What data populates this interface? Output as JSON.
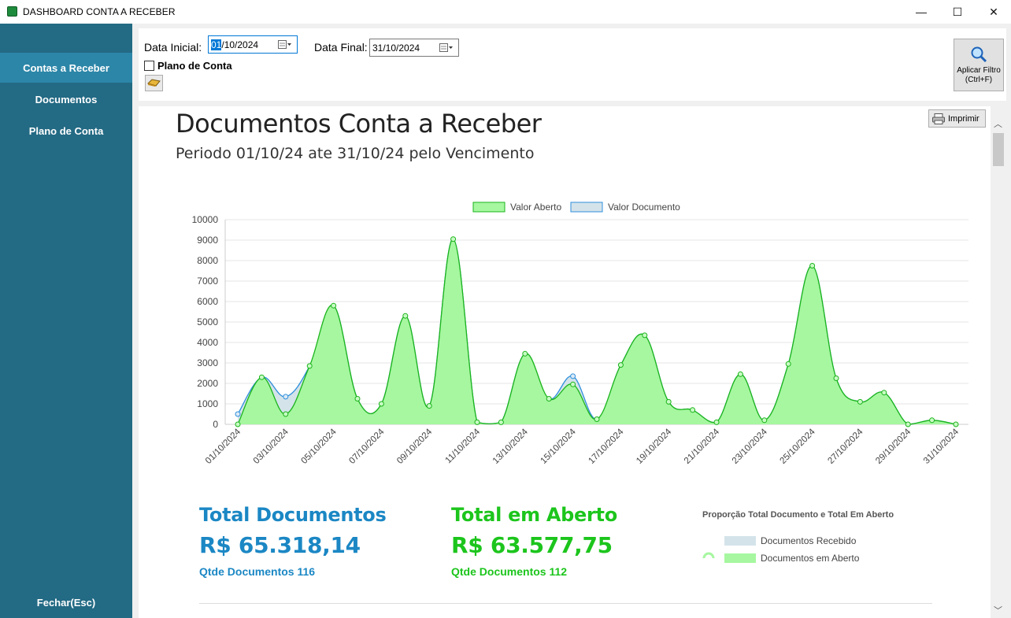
{
  "window": {
    "title": "DASHBOARD CONTA A RECEBER",
    "controls": [
      "—",
      "☐",
      "✕"
    ]
  },
  "sidebar": {
    "items": [
      {
        "label": "Contas a Receber",
        "active": true
      },
      {
        "label": "Documentos",
        "active": false
      },
      {
        "label": "Plano de Conta",
        "active": false
      }
    ],
    "close_label": "Fechar(Esc)"
  },
  "filter": {
    "data_inicial_label": "Data Inicial:",
    "data_inicial_selected": "01",
    "data_inicial_rest": "/10/2024",
    "data_final_label": "Data Final:",
    "data_final_value": "31/10/2024",
    "plano_label": "Plano de Conta",
    "apply_label": "Aplicar Filtro",
    "apply_shortcut": "(Ctrl+F)"
  },
  "report": {
    "title": "Documentos Conta a Receber",
    "subtitle": "Periodo 01/10/24 ate 31/10/24 pelo Vencimento",
    "print_label": "Imprimir"
  },
  "colors": {
    "sidebar": "#236a84",
    "sidebar_active": "#2c86a8",
    "blue_kpi": "#1b87c4",
    "green_kpi": "#1cc51c",
    "area_green": "#a6f7a0",
    "area_blue": "#d4e3ea"
  },
  "chart_data": {
    "type": "area",
    "legend": [
      "Valor Aberto",
      "Valor Documento"
    ],
    "x": [
      "01/10/2024",
      "02/10/2024",
      "03/10/2024",
      "04/10/2024",
      "05/10/2024",
      "06/10/2024",
      "07/10/2024",
      "08/10/2024",
      "09/10/2024",
      "10/10/2024",
      "11/10/2024",
      "12/10/2024",
      "13/10/2024",
      "14/10/2024",
      "15/10/2024",
      "16/10/2024",
      "17/10/2024",
      "18/10/2024",
      "19/10/2024",
      "20/10/2024",
      "21/10/2024",
      "22/10/2024",
      "23/10/2024",
      "24/10/2024",
      "25/10/2024",
      "26/10/2024",
      "27/10/2024",
      "28/10/2024",
      "29/10/2024",
      "30/10/2024",
      "31/10/2024"
    ],
    "tick_labels": [
      "01/10/2024",
      "03/10/2024",
      "05/10/2024",
      "07/10/2024",
      "09/10/2024",
      "11/10/2024",
      "13/10/2024",
      "15/10/2024",
      "17/10/2024",
      "19/10/2024",
      "21/10/2024",
      "23/10/2024",
      "25/10/2024",
      "27/10/2024",
      "29/10/2024",
      "31/10/2024"
    ],
    "series": [
      {
        "name": "Valor Aberto",
        "values": [
          0,
          2300,
          500,
          2850,
          5800,
          1250,
          1000,
          5300,
          900,
          9050,
          100,
          100,
          3450,
          1250,
          1950,
          250,
          2900,
          4350,
          1100,
          700,
          100,
          2450,
          200,
          2950,
          7750,
          2250,
          1100,
          1550,
          0,
          200,
          0
        ]
      },
      {
        "name": "Valor Documento",
        "values": [
          500,
          2300,
          1350,
          2850,
          5800,
          1250,
          1000,
          5300,
          900,
          9050,
          100,
          100,
          3450,
          1250,
          2350,
          250,
          2900,
          4350,
          1100,
          700,
          100,
          2450,
          200,
          2950,
          7750,
          2250,
          1100,
          1550,
          0,
          200,
          0
        ]
      }
    ],
    "ylim": [
      0,
      10000
    ],
    "yticks": [
      "0",
      "1000",
      "2000",
      "3000",
      "4000",
      "5000",
      "6000",
      "7000",
      "8000",
      "9000",
      "10000"
    ],
    "grid": true,
    "legend_position": "top-center"
  },
  "kpis": {
    "total_docs_title": "Total Documentos",
    "total_docs_value": "R$ 65.318,14",
    "total_docs_count": "Qtde Documentos 116",
    "total_aberto_title": "Total em Aberto",
    "total_aberto_value": "R$ 63.577,75",
    "total_aberto_count": "Qtde Documentos 112"
  },
  "proportion": {
    "title": "Proporção Total Documento e Total Em Aberto",
    "legend": [
      "Documentos Recebido",
      "Documentos em Aberto"
    ]
  }
}
